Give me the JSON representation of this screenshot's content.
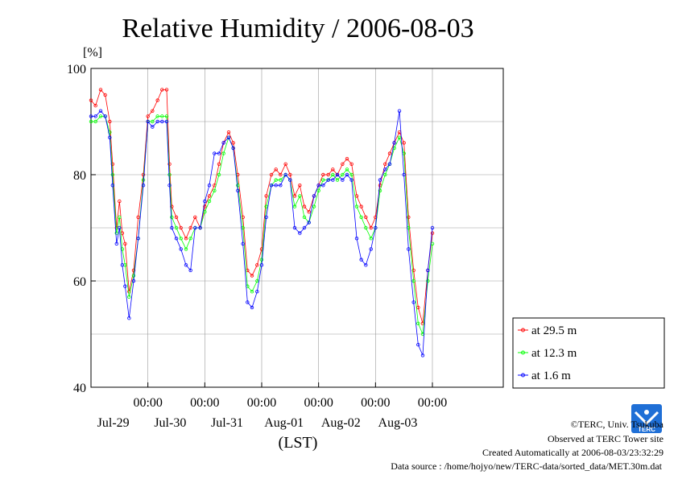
{
  "chart_data": {
    "type": "line",
    "title": "Relative Humidity / 2006-08-03",
    "ylabel": "[%]",
    "xlabel": "(LST)",
    "ylim": [
      40,
      100
    ],
    "xlim": [
      -1.0,
      5.0
    ],
    "y_ticks": [
      40,
      60,
      80,
      100
    ],
    "x_ticks": [
      {
        "x": 0,
        "time": "00:00",
        "date": "Jul-29"
      },
      {
        "x": 1,
        "time": "00:00",
        "date": "Jul-30"
      },
      {
        "x": 2,
        "time": "00:00",
        "date": "Jul-31"
      },
      {
        "x": 3,
        "time": "00:00",
        "date": "Aug-01"
      },
      {
        "x": 4,
        "time": "00:00",
        "date": "Aug-02"
      },
      {
        "x": 5,
        "time": "00:00",
        "date": "Aug-03"
      }
    ],
    "grid": true,
    "legend_position": "right-bottom",
    "series": [
      {
        "name": "at 29.5 m",
        "color": "#ff0000",
        "x": [
          -1.0,
          -0.92,
          -0.83,
          -0.75,
          -0.67,
          -0.62,
          -0.55,
          -0.5,
          -0.45,
          -0.4,
          -0.33,
          -0.25,
          -0.17,
          -0.08,
          0.0,
          0.08,
          0.17,
          0.25,
          0.33,
          0.38,
          0.42,
          0.5,
          0.58,
          0.67,
          0.75,
          0.83,
          0.92,
          1.0,
          1.08,
          1.17,
          1.25,
          1.33,
          1.42,
          1.5,
          1.58,
          1.67,
          1.75,
          1.83,
          1.92,
          2.0,
          2.08,
          2.17,
          2.25,
          2.33,
          2.42,
          2.5,
          2.58,
          2.67,
          2.75,
          2.83,
          2.92,
          3.0,
          3.08,
          3.17,
          3.25,
          3.33,
          3.42,
          3.5,
          3.58,
          3.67,
          3.75,
          3.83,
          3.92,
          4.0,
          4.08,
          4.17,
          4.25,
          4.33,
          4.42,
          4.5,
          4.58,
          4.67,
          4.75,
          4.83,
          4.92,
          5.0
        ],
        "values": [
          94,
          93,
          96,
          95,
          90,
          82,
          70,
          75,
          69,
          67,
          58,
          62,
          72,
          80,
          91,
          92,
          94,
          96,
          96,
          82,
          74,
          72,
          70,
          68,
          70,
          72,
          70,
          74,
          76,
          78,
          82,
          86,
          88,
          86,
          80,
          72,
          62,
          61,
          63,
          66,
          76,
          80,
          81,
          80,
          82,
          80,
          76,
          78,
          74,
          73,
          76,
          78,
          80,
          80,
          81,
          80,
          82,
          83,
          82,
          76,
          74,
          72,
          70,
          72,
          78,
          82,
          84,
          86,
          88,
          86,
          72,
          62,
          55,
          52,
          62,
          69
        ]
      },
      {
        "name": "at 12.3 m",
        "color": "#00ff00",
        "x": [
          -1.0,
          -0.92,
          -0.83,
          -0.75,
          -0.67,
          -0.62,
          -0.55,
          -0.5,
          -0.45,
          -0.4,
          -0.33,
          -0.25,
          -0.17,
          -0.08,
          0.0,
          0.08,
          0.17,
          0.25,
          0.33,
          0.38,
          0.42,
          0.5,
          0.58,
          0.67,
          0.75,
          0.83,
          0.92,
          1.0,
          1.08,
          1.17,
          1.25,
          1.33,
          1.42,
          1.5,
          1.58,
          1.67,
          1.75,
          1.83,
          1.92,
          2.0,
          2.08,
          2.17,
          2.25,
          2.33,
          2.42,
          2.5,
          2.58,
          2.67,
          2.75,
          2.83,
          2.92,
          3.0,
          3.08,
          3.17,
          3.25,
          3.33,
          3.42,
          3.5,
          3.58,
          3.67,
          3.75,
          3.83,
          3.92,
          4.0,
          4.08,
          4.17,
          4.25,
          4.33,
          4.42,
          4.5,
          4.58,
          4.67,
          4.75,
          4.83,
          4.92,
          5.0
        ],
        "values": [
          90,
          90,
          91,
          91,
          88,
          80,
          69,
          72,
          66,
          63,
          57,
          61,
          68,
          79,
          90,
          90,
          91,
          91,
          91,
          80,
          72,
          70,
          68,
          66,
          68,
          70,
          70,
          73,
          75,
          77,
          80,
          84,
          87,
          85,
          78,
          70,
          59,
          58,
          60,
          64,
          74,
          78,
          79,
          79,
          80,
          79,
          74,
          76,
          72,
          71,
          74,
          77,
          79,
          79,
          80,
          79,
          80,
          81,
          80,
          74,
          72,
          70,
          68,
          70,
          77,
          80,
          82,
          85,
          87,
          84,
          70,
          60,
          52,
          50,
          60,
          67
        ]
      },
      {
        "name": "at 1.6 m",
        "color": "#0000ff",
        "x": [
          -1.0,
          -0.92,
          -0.83,
          -0.75,
          -0.67,
          -0.62,
          -0.55,
          -0.5,
          -0.45,
          -0.4,
          -0.33,
          -0.25,
          -0.17,
          -0.08,
          0.0,
          0.08,
          0.17,
          0.25,
          0.33,
          0.38,
          0.42,
          0.5,
          0.58,
          0.67,
          0.75,
          0.83,
          0.92,
          1.0,
          1.08,
          1.17,
          1.25,
          1.33,
          1.42,
          1.5,
          1.58,
          1.67,
          1.75,
          1.83,
          1.92,
          2.0,
          2.08,
          2.17,
          2.25,
          2.33,
          2.42,
          2.5,
          2.58,
          2.67,
          2.75,
          2.83,
          2.92,
          3.0,
          3.08,
          3.17,
          3.25,
          3.33,
          3.42,
          3.5,
          3.58,
          3.67,
          3.75,
          3.83,
          3.92,
          4.0,
          4.08,
          4.17,
          4.25,
          4.33,
          4.42,
          4.5,
          4.58,
          4.67,
          4.75,
          4.83,
          4.92,
          5.0
        ],
        "values": [
          91,
          91,
          92,
          91,
          87,
          78,
          67,
          70,
          63,
          59,
          53,
          60,
          68,
          78,
          90,
          89,
          90,
          90,
          90,
          78,
          70,
          68,
          66,
          63,
          62,
          70,
          70,
          75,
          78,
          84,
          84,
          86,
          87,
          85,
          77,
          67,
          56,
          55,
          58,
          63,
          72,
          78,
          78,
          78,
          80,
          79,
          70,
          69,
          70,
          71,
          76,
          78,
          78,
          79,
          79,
          80,
          79,
          80,
          79,
          68,
          64,
          63,
          66,
          70,
          79,
          81,
          82,
          86,
          92,
          80,
          66,
          56,
          48,
          46,
          62,
          70
        ]
      }
    ]
  },
  "footer": {
    "credit": "©TERC, Univ. Tsukuba",
    "observed": "Observed at TERC Tower site",
    "created": "Created Automatically at 2006-08-03/23:32:29",
    "source": "Data source : /home/hojyo/new/TERC-data/sorted_data/MET.30m.dat",
    "logo_text": "TERC"
  }
}
